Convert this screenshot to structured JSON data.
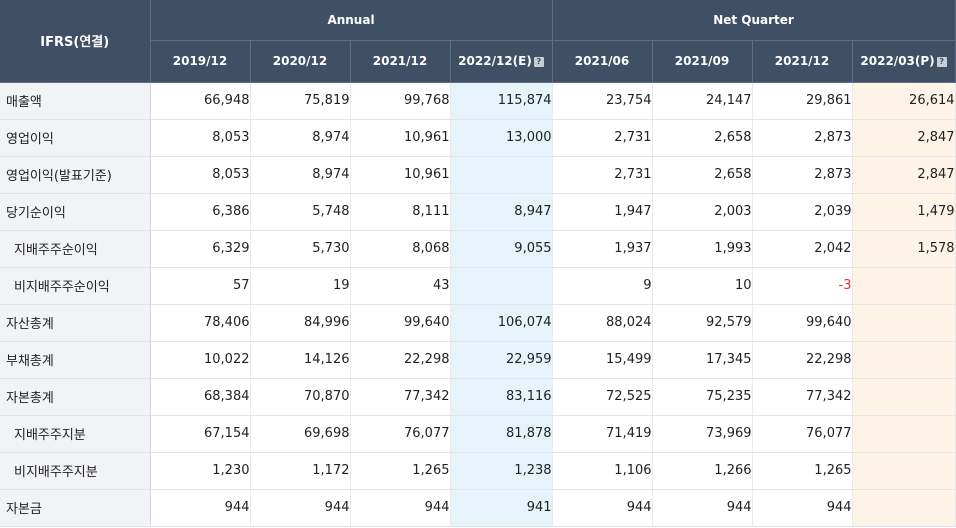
{
  "header": {
    "corner_label": "IFRS(연결)",
    "annual_label": "Annual",
    "quarter_label": "Net Quarter",
    "annual_periods": [
      "2019/12",
      "2020/12",
      "2021/12",
      "2022/12(E)"
    ],
    "quarter_periods": [
      "2021/06",
      "2021/09",
      "2021/12",
      "2022/03(P)"
    ],
    "estimate_icon_glyph": "?"
  },
  "rows": [
    {
      "label": "매출액",
      "values": [
        "66,948",
        "75,819",
        "99,768",
        "115,874",
        "23,754",
        "24,147",
        "29,861",
        "26,614"
      ]
    },
    {
      "label": "영업이익",
      "values": [
        "8,053",
        "8,974",
        "10,961",
        "13,000",
        "2,731",
        "2,658",
        "2,873",
        "2,847"
      ]
    },
    {
      "label": "영업이익(발표기준)",
      "values": [
        "8,053",
        "8,974",
        "10,961",
        "",
        "2,731",
        "2,658",
        "2,873",
        "2,847"
      ]
    },
    {
      "label": "당기순이익",
      "values": [
        "6,386",
        "5,748",
        "8,111",
        "8,947",
        "1,947",
        "2,003",
        "2,039",
        "1,479"
      ]
    },
    {
      "label": "지배주주순이익",
      "values": [
        "6,329",
        "5,730",
        "8,068",
        "9,055",
        "1,937",
        "1,993",
        "2,042",
        "1,578"
      ]
    },
    {
      "label": "비지배주주순이익",
      "values": [
        "57",
        "19",
        "43",
        "",
        "9",
        "10",
        "-3",
        ""
      ]
    },
    {
      "label": "자산총계",
      "values": [
        "78,406",
        "84,996",
        "99,640",
        "106,074",
        "88,024",
        "92,579",
        "99,640",
        ""
      ]
    },
    {
      "label": "부채총계",
      "values": [
        "10,022",
        "14,126",
        "22,298",
        "22,959",
        "15,499",
        "17,345",
        "22,298",
        ""
      ]
    },
    {
      "label": "자본총계",
      "values": [
        "68,384",
        "70,870",
        "77,342",
        "83,116",
        "72,525",
        "75,235",
        "77,342",
        ""
      ]
    },
    {
      "label": "지배주주지분",
      "values": [
        "67,154",
        "69,698",
        "76,077",
        "81,878",
        "71,419",
        "73,969",
        "76,077",
        ""
      ]
    },
    {
      "label": "비지배주주지분",
      "values": [
        "1,230",
        "1,172",
        "1,265",
        "1,238",
        "1,106",
        "1,266",
        "1,265",
        ""
      ]
    },
    {
      "label": "자본금",
      "values": [
        "944",
        "944",
        "944",
        "941",
        "944",
        "944",
        "944",
        ""
      ]
    }
  ],
  "colors": {
    "header_bg": "#3f4f64",
    "label_bg": "#f1f3f6",
    "estimate_col_bg": "#e6f3fb",
    "provisional_col_bg": "#fdf3e6",
    "negative_text": "#e0322f"
  }
}
